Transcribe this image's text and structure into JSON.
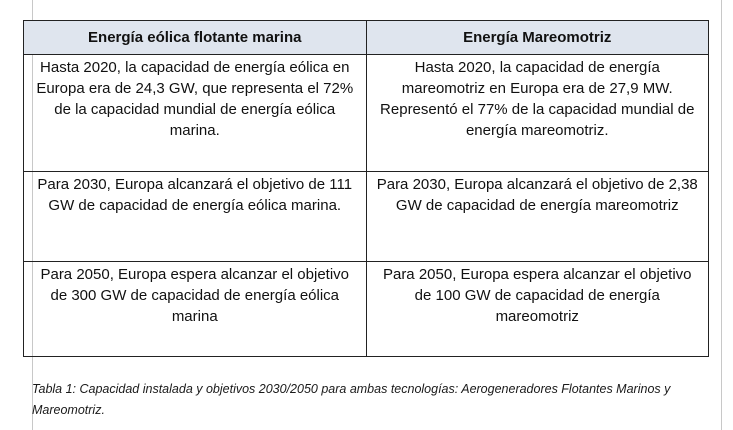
{
  "table": {
    "headers": [
      "Energía eólica flotante marina",
      "Energía Mareomotriz"
    ],
    "rows": [
      [
        "Hasta 2020, la capacidad de energía eólica en Europa era de 24,3 GW, que representa el 72% de la capacidad mundial de energía eólica marina.",
        "Hasta 2020, la capacidad de energía mareomotriz en Europa era de 27,9 MW. Representó el 77% de la capacidad mundial de energía mareomotriz."
      ],
      [
        "Para 2030, Europa alcanzará el objetivo de 111 GW de capacidad de energía eólica marina.",
        "Para 2030, Europa alcanzará el objetivo de 2,38 GW de capacidad de energía mareomotriz"
      ],
      [
        "Para 2050, Europa espera alcanzar el objetivo de 300 GW de capacidad de energía eólica marina",
        "Para 2050, Europa espera alcanzar el objetivo de 100 GW de capacidad de energía mareomotriz"
      ]
    ]
  },
  "caption": "Tabla 1: Capacidad instalada y objetivos 2030/2050 para ambas tecnologías: Aerogeneradores Flotantes Marinos y Mareomotriz."
}
